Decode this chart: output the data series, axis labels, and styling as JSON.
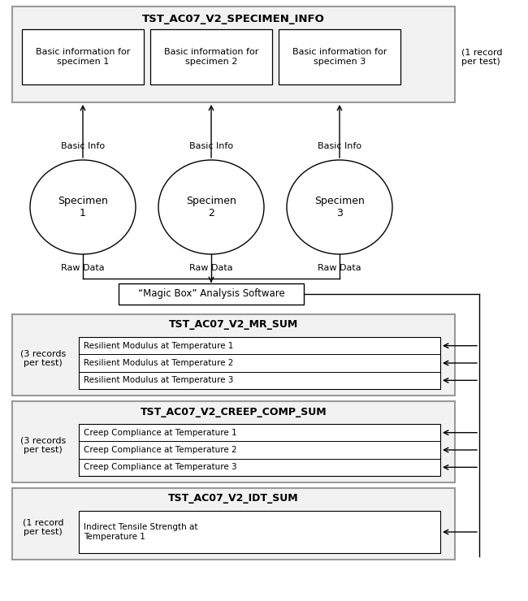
{
  "title": "TST_AC07_V2_SPECIMEN_INFO",
  "bg_color": "#ffffff",
  "specimen_boxes": [
    "Basic information for\nspecimen 1",
    "Basic information for\nspecimen 2",
    "Basic information for\nspecimen 3"
  ],
  "record_label_top": "(1 record\nper test)",
  "specimen_labels": [
    "Specimen\n1",
    "Specimen\n2",
    "Specimen\n3"
  ],
  "basic_info_labels": [
    "Basic Info",
    "Basic Info",
    "Basic Info"
  ],
  "raw_data_labels": [
    "Raw Data",
    "Raw Data",
    "Raw Data"
  ],
  "magic_box_label": "“Magic Box” Analysis Software",
  "tables": [
    {
      "title": "TST_AC07_V2_MR_SUM",
      "record_label": "(3 records\nper test)",
      "rows": [
        "Resilient Modulus at Temperature 1",
        "Resilient Modulus at Temperature 2",
        "Resilient Modulus at Temperature 3"
      ]
    },
    {
      "title": "TST_AC07_V2_CREEP_COMP_SUM",
      "record_label": "(3 records\nper test)",
      "rows": [
        "Creep Compliance at Temperature 1",
        "Creep Compliance at Temperature 2",
        "Creep Compliance at Temperature 3"
      ]
    },
    {
      "title": "TST_AC07_V2_IDT_SUM",
      "record_label": "(1 record\nper test)",
      "rows": [
        "Indirect Tensile Strength at\nTemperature 1"
      ]
    }
  ]
}
